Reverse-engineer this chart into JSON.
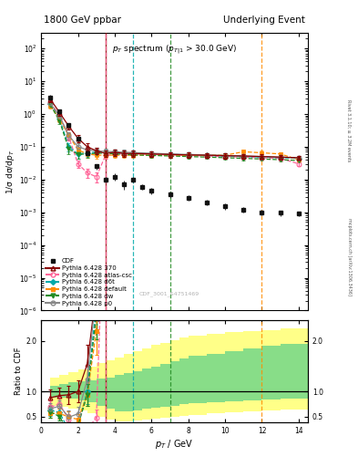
{
  "title_left": "1800 GeV ppbar",
  "title_right": "Underlying Event",
  "main_title": "$p_T$ spectrum ($p_{T|1}$ > 30.0 GeV)",
  "xlabel": "$p_T$ / GeV",
  "ylabel_main": "1/σ dσ/d$p_T$",
  "ylabel_ratio": "Ratio to CDF",
  "watermark": "CDF_3001_S4751469",
  "right_label_top": "Rivet 3.1.10; ≥ 3.2M events",
  "right_label_bot": "mcplots.cern.ch [arXiv:1306.3436]",
  "cdf_x": [
    0.5,
    1.0,
    1.5,
    2.0,
    2.5,
    3.0,
    3.5,
    4.0,
    4.5,
    5.0,
    5.5,
    6.0,
    7.0,
    8.0,
    9.0,
    10.0,
    11.0,
    12.0,
    13.0,
    14.0
  ],
  "cdf_y": [
    3.2,
    1.2,
    0.45,
    0.18,
    0.065,
    0.025,
    0.01,
    0.012,
    0.007,
    0.01,
    0.006,
    0.0045,
    0.0035,
    0.0028,
    0.002,
    0.0015,
    0.0012,
    0.001,
    0.00095,
    0.0009
  ],
  "cdf_yerr": [
    0.5,
    0.18,
    0.06,
    0.025,
    0.01,
    0.005,
    0.002,
    0.003,
    0.002,
    0.002,
    0.001,
    0.001,
    0.0008,
    0.0006,
    0.0004,
    0.0003,
    0.00025,
    0.0002,
    0.00018,
    0.00016
  ],
  "py370_x": [
    0.5,
    1.0,
    1.5,
    2.0,
    2.5,
    3.0,
    3.5,
    4.0,
    4.5,
    5.0,
    6.0,
    7.0,
    8.0,
    9.0,
    10.0,
    11.0,
    12.0,
    13.0,
    14.0
  ],
  "py370_y": [
    2.8,
    1.1,
    0.42,
    0.18,
    0.1,
    0.075,
    0.062,
    0.068,
    0.062,
    0.062,
    0.06,
    0.058,
    0.056,
    0.055,
    0.053,
    0.052,
    0.05,
    0.048,
    0.046
  ],
  "py370_yerr": [
    0.5,
    0.2,
    0.08,
    0.04,
    0.025,
    0.015,
    0.012,
    0.015,
    0.014,
    0.014,
    0.012,
    0.011,
    0.01,
    0.009,
    0.009,
    0.008,
    0.008,
    0.007,
    0.007
  ],
  "pyatlas_x": [
    0.5,
    1.0,
    1.5,
    2.0,
    2.5,
    3.0,
    3.5,
    4.0,
    4.5,
    5.0,
    6.0,
    7.0,
    8.0,
    9.0,
    10.0,
    11.0,
    12.0,
    13.0,
    14.0
  ],
  "pyatlas_y": [
    2.2,
    0.9,
    0.2,
    0.03,
    0.016,
    0.012,
    0.055,
    0.06,
    0.06,
    0.06,
    0.058,
    0.056,
    0.054,
    0.052,
    0.05,
    0.048,
    0.046,
    0.044,
    0.03
  ],
  "pyatlas_yerr": [
    0.4,
    0.18,
    0.05,
    0.008,
    0.005,
    0.004,
    0.012,
    0.012,
    0.011,
    0.01,
    0.009,
    0.009,
    0.008,
    0.008,
    0.007,
    0.007,
    0.006,
    0.006,
    0.005
  ],
  "pyd6t_x": [
    0.5,
    1.0,
    1.5,
    2.0,
    2.5,
    3.0,
    3.5,
    4.0,
    4.5,
    5.0,
    6.0,
    7.0,
    8.0,
    9.0,
    10.0,
    11.0,
    12.0,
    13.0,
    14.0
  ],
  "pyd6t_y": [
    2.0,
    0.7,
    0.1,
    0.06,
    0.065,
    0.068,
    0.068,
    0.065,
    0.063,
    0.062,
    0.06,
    0.058,
    0.056,
    0.054,
    0.052,
    0.05,
    0.048,
    0.046,
    0.044
  ],
  "pyd6t_yerr": [
    0.35,
    0.12,
    0.03,
    0.018,
    0.016,
    0.014,
    0.012,
    0.011,
    0.01,
    0.009,
    0.009,
    0.008,
    0.008,
    0.007,
    0.007,
    0.006,
    0.006,
    0.006,
    0.005
  ],
  "pydef_x": [
    0.5,
    1.0,
    1.5,
    2.0,
    2.5,
    3.0,
    3.5,
    4.0,
    4.5,
    5.0,
    6.0,
    7.0,
    8.0,
    9.0,
    10.0,
    11.0,
    12.0,
    13.0,
    14.0
  ],
  "pydef_y": [
    1.8,
    0.68,
    0.22,
    0.08,
    0.06,
    0.055,
    0.055,
    0.055,
    0.055,
    0.055,
    0.055,
    0.055,
    0.055,
    0.055,
    0.055,
    0.07,
    0.065,
    0.06,
    0.04
  ],
  "pydef_yerr": [
    0.3,
    0.12,
    0.05,
    0.02,
    0.014,
    0.012,
    0.01,
    0.009,
    0.009,
    0.008,
    0.008,
    0.008,
    0.007,
    0.007,
    0.007,
    0.009,
    0.009,
    0.008,
    0.006
  ],
  "pydw_x": [
    0.5,
    1.0,
    1.5,
    2.0,
    2.5,
    3.0,
    3.5,
    4.0,
    4.5,
    5.0,
    6.0,
    7.0,
    8.0,
    9.0,
    10.0,
    11.0,
    12.0,
    13.0,
    14.0
  ],
  "pydw_y": [
    1.9,
    0.6,
    0.085,
    0.058,
    0.06,
    0.063,
    0.063,
    0.06,
    0.058,
    0.056,
    0.054,
    0.052,
    0.05,
    0.048,
    0.046,
    0.044,
    0.042,
    0.04,
    0.038
  ],
  "pydw_yerr": [
    0.35,
    0.1,
    0.025,
    0.015,
    0.014,
    0.012,
    0.011,
    0.01,
    0.009,
    0.008,
    0.008,
    0.007,
    0.007,
    0.006,
    0.006,
    0.006,
    0.005,
    0.005,
    0.005
  ],
  "pyp0_x": [
    0.5,
    1.0,
    1.5,
    2.0,
    2.5,
    3.0,
    3.5,
    4.0,
    4.5,
    5.0,
    6.0,
    7.0,
    8.0,
    9.0,
    10.0,
    11.0,
    12.0,
    13.0,
    14.0
  ],
  "pyp0_y": [
    2.1,
    0.85,
    0.22,
    0.1,
    0.08,
    0.075,
    0.072,
    0.07,
    0.068,
    0.066,
    0.063,
    0.06,
    0.058,
    0.056,
    0.054,
    0.052,
    0.05,
    0.048,
    0.046
  ],
  "pyp0_yerr": [
    0.38,
    0.14,
    0.06,
    0.025,
    0.018,
    0.015,
    0.013,
    0.012,
    0.011,
    0.01,
    0.009,
    0.009,
    0.008,
    0.008,
    0.007,
    0.007,
    0.006,
    0.006,
    0.006
  ],
  "vlines": [
    {
      "x": 3.5,
      "color": "#8B0000",
      "ls": "-"
    },
    {
      "x": 3.5,
      "color": "#FF6699",
      "ls": "--"
    },
    {
      "x": 5.0,
      "color": "#00CCCC",
      "ls": "--"
    },
    {
      "x": 12.0,
      "color": "#FFA500",
      "ls": "--"
    },
    {
      "x": 7.0,
      "color": "#228B22",
      "ls": "--"
    },
    {
      "x": 14.0,
      "color": "#808080",
      "ls": "--"
    }
  ],
  "bg_x_edges": [
    0.5,
    1.0,
    1.5,
    2.0,
    2.5,
    3.0,
    3.5,
    4.0,
    4.5,
    5.0,
    5.5,
    6.0,
    6.5,
    7.0,
    7.5,
    8.0,
    9.0,
    10.0,
    11.0,
    12.0,
    13.0,
    14.5
  ],
  "bg_green_lo": [
    0.88,
    0.88,
    0.85,
    0.82,
    0.78,
    0.72,
    0.65,
    0.6,
    0.6,
    0.62,
    0.65,
    0.68,
    0.7,
    0.72,
    0.74,
    0.76,
    0.78,
    0.8,
    0.82,
    0.84,
    0.86
  ],
  "bg_green_hi": [
    1.12,
    1.15,
    1.18,
    1.2,
    1.22,
    1.25,
    1.28,
    1.32,
    1.36,
    1.4,
    1.45,
    1.5,
    1.55,
    1.6,
    1.65,
    1.7,
    1.75,
    1.8,
    1.85,
    1.9,
    1.95
  ],
  "bg_yellow_lo": [
    0.72,
    0.7,
    0.66,
    0.62,
    0.56,
    0.5,
    0.44,
    0.4,
    0.4,
    0.42,
    0.44,
    0.46,
    0.48,
    0.5,
    0.52,
    0.54,
    0.56,
    0.58,
    0.6,
    0.62,
    0.64
  ],
  "bg_yellow_hi": [
    1.28,
    1.32,
    1.38,
    1.44,
    1.5,
    1.56,
    1.62,
    1.68,
    1.74,
    1.8,
    1.86,
    1.92,
    1.97,
    2.02,
    2.07,
    2.1,
    2.14,
    2.18,
    2.2,
    2.22,
    2.25
  ],
  "colors": {
    "cdf": "#111111",
    "py370": "#8B0000",
    "pyatlas": "#FF6699",
    "pyd6t": "#00AAAA",
    "pydef": "#FF8C00",
    "pydw": "#228B22",
    "pyp0": "#888888"
  },
  "ylim_main": [
    1e-06,
    300.0
  ],
  "xlim": [
    0.0,
    14.5
  ],
  "ylim_ratio": [
    0.38,
    2.42
  ],
  "yticks_ratio": [
    0.5,
    1.0,
    2.0
  ]
}
